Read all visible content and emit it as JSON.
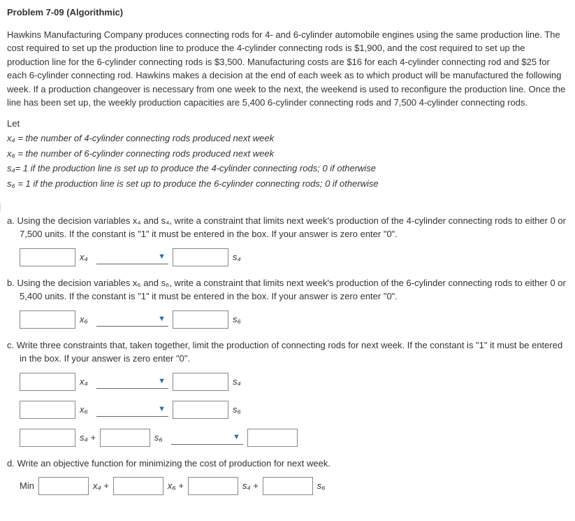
{
  "title": "Problem 7-09 (Algorithmic)",
  "intro": "Hawkins Manufacturing Company produces connecting rods for 4- and 6-cylinder automobile engines using the same production line. The cost required to set up the production line to produce the 4-cylinder connecting rods is $1,900, and the cost required to set up the production line for the 6-cylinder connecting rods is $3,500. Manufacturing costs are $16 for each 4-cylinder connecting rod and $25 for each 6-cylinder connecting rod. Hawkins makes a decision at the end of each week as to which product will be manufactured the following week. If a production changeover is necessary from one week to the next, the weekend is used to reconfigure the production line. Once the line has been set up, the weekly production capacities are 5,400 6-cylinder connecting rods and 7,500 4-cylinder connecting rods.",
  "let": "Let",
  "defs": {
    "x4": "x₄ = the number of 4-cylinder connecting rods produced next week",
    "x6": "x₆ = the number of 6-cylinder connecting rods produced next week",
    "s4": "s₄= 1 if the production line is set up to produce the 4-cylinder connecting rods; 0 if otherwise",
    "s6": "s₆ = 1 if the production line is set up to produce the 6-cylinder connecting rods; 0 if otherwise"
  },
  "qa": {
    "label": "a. Using the decision variables x₄ and s₄, write a constraint that limits next week's production of the 4-cylinder connecting rods to either 0 or 7,500 units. If the constant is \"1\" it must be entered in the box. If your answer is zero enter \"0\"."
  },
  "qb": {
    "label": "b. Using the decision variables x₆ and s₆, write a constraint that limits next week's production of the 6-cylinder connecting rods to either 0 or 5,400 units. If the constant is \"1\" it must be entered in the box. If your answer is zero enter \"0\"."
  },
  "qc": {
    "label": "c. Write three constraints that, taken together, limit the production of connecting rods for next week. If the constant is \"1\" it must be entered in the box. If your answer is zero enter \"0\"."
  },
  "qd": {
    "label": "d. Write an objective function for minimizing the cost of production for next week.",
    "min": "Min"
  },
  "vars": {
    "x4": "x₄",
    "x6": "x₆",
    "s4": "s₄",
    "s6": "s₆",
    "x4p": "x₄ +",
    "x6p": "x₆ +",
    "s4p": "s₄ +"
  }
}
